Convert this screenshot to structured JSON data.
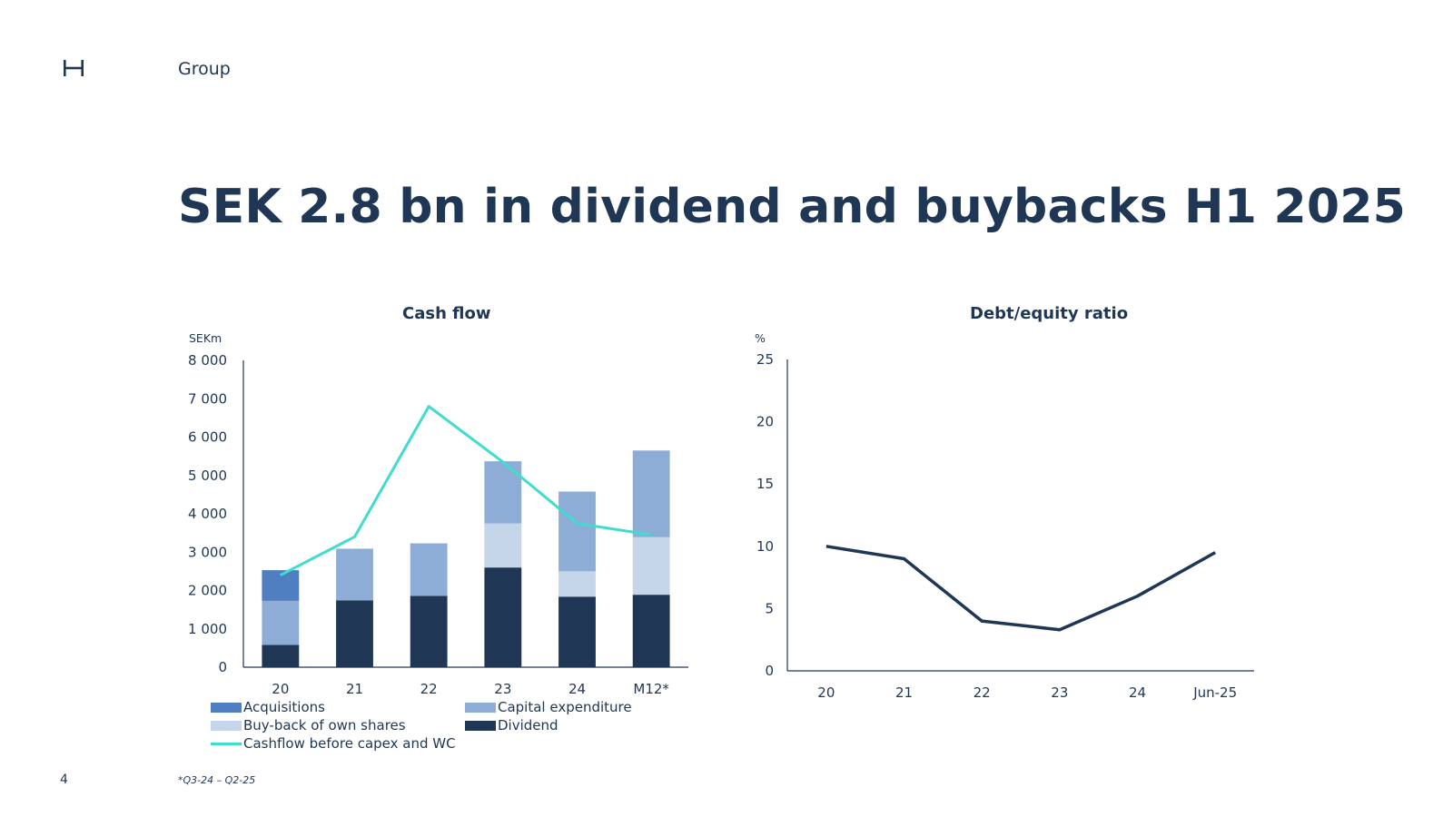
{
  "header": {
    "section": "Group",
    "title": "SEK 2.8 bn in dividend and buybacks H1 2025"
  },
  "footer": {
    "page_number": "4",
    "footnote": "*Q3-24 – Q2-25"
  },
  "colors": {
    "dividend": "#1f3654",
    "buyback": "#c5d5ea",
    "capex": "#8eadd6",
    "acquisitions": "#4f7fc0",
    "cashflow_line": "#3fdccf",
    "debt_line": "#1f3654",
    "axis": "#1f3654"
  },
  "chart_data": [
    {
      "type": "bar",
      "stacked": true,
      "title": "Cash flow",
      "unit": "SEKm",
      "categories": [
        "20",
        "21",
        "22",
        "23",
        "24",
        "M12*"
      ],
      "ylim": [
        0,
        8000
      ],
      "yticks": [
        0,
        1000,
        2000,
        3000,
        4000,
        5000,
        6000,
        7000,
        8000
      ],
      "ytick_labels": [
        "0",
        "1 000",
        "2 000",
        "3 000",
        "4 000",
        "5 000",
        "6 000",
        "7 000",
        "8 000"
      ],
      "series": [
        {
          "name": "Dividend",
          "color_key": "dividend",
          "values": [
            580,
            1740,
            1860,
            2600,
            1840,
            1890
          ]
        },
        {
          "name": "Buy-back of own shares",
          "color_key": "buyback",
          "values": [
            0,
            0,
            0,
            1150,
            660,
            1500
          ]
        },
        {
          "name": "Capital expenditure",
          "color_key": "capex",
          "values": [
            1150,
            1350,
            1370,
            1620,
            2080,
            2260
          ]
        },
        {
          "name": "Acquisitions",
          "color_key": "acquisitions",
          "values": [
            800,
            0,
            0,
            0,
            0,
            0
          ]
        }
      ],
      "line_series": {
        "name": "Cashflow before capex and WC",
        "color_key": "cashflow_line",
        "values": [
          2400,
          3400,
          6800,
          5350,
          3750,
          3450
        ]
      },
      "legend": {
        "placement": "bottom",
        "items": [
          {
            "label": "Acquisitions",
            "color_key": "acquisitions",
            "kind": "box"
          },
          {
            "label": "Capital expenditure",
            "color_key": "capex",
            "kind": "box"
          },
          {
            "label": "Buy-back of own shares",
            "color_key": "buyback",
            "kind": "box"
          },
          {
            "label": "Dividend",
            "color_key": "dividend",
            "kind": "box"
          },
          {
            "label": "Cashflow before capex and WC",
            "color_key": "cashflow_line",
            "kind": "line"
          }
        ]
      },
      "grid": false
    },
    {
      "type": "line",
      "title": "Debt/equity ratio",
      "unit": "%",
      "categories": [
        "20",
        "21",
        "22",
        "23",
        "24",
        "Jun-25"
      ],
      "ylim": [
        0,
        25
      ],
      "yticks": [
        0,
        5,
        10,
        15,
        20,
        25
      ],
      "ytick_labels": [
        "0",
        "5",
        "10",
        "15",
        "20",
        "25"
      ],
      "series": [
        {
          "color_key": "debt_line",
          "values": [
            10,
            9,
            4,
            3.3,
            6,
            9.5
          ]
        }
      ],
      "grid": false
    }
  ]
}
